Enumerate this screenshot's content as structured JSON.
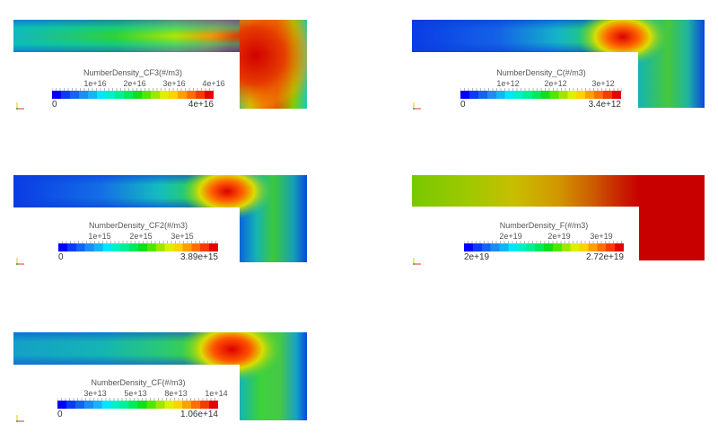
{
  "figure": {
    "description": "Five 2D L-shaped channel contour plots of number densities",
    "panels": [
      {
        "id": "cf3",
        "title": "NumberDensity_CF3(#/m3)",
        "range": {
          "min_label": "0",
          "max_label": "4e+16",
          "min": 0,
          "max": 4e+16
        },
        "tick_labels": [
          "1e+16",
          "2e+16",
          "3e+16",
          "4e+16"
        ],
        "hotspot": "corner-and-vertical-leg"
      },
      {
        "id": "c",
        "title": "NumberDensity_C(#/m3)",
        "range": {
          "min_label": "0",
          "max_label": "3.4e+12",
          "min": 0,
          "max": 3400000000000.0
        },
        "tick_labels": [
          "1e+12",
          "2e+12",
          "3e+12"
        ],
        "hotspot": "near-corner-top"
      },
      {
        "id": "cf2",
        "title": "NumberDensity_CF2(#/m3)",
        "range": {
          "min_label": "0",
          "max_label": "3.89e+15",
          "min": 0,
          "max": 3890000000000000.0
        },
        "tick_labels": [
          "1e+15",
          "2e+15",
          "3e+15"
        ],
        "hotspot": "near-corner-top"
      },
      {
        "id": "f",
        "title": "NumberDensity_F(#/m3)",
        "range": {
          "min_label": "2e+19",
          "max_label": "2.72e+19",
          "min": 2e+19,
          "max": 2.72e+19
        },
        "tick_labels": [
          "2e+19",
          "2e+19",
          "3e+19"
        ],
        "hotspot": "right-side"
      },
      {
        "id": "cf",
        "title": "NumberDensity_CF(#/m3)",
        "range": {
          "min_label": "0",
          "max_label": "1.06e+14",
          "min": 0,
          "max": 106000000000000.0
        },
        "tick_labels": [
          "3e+13",
          "5e+13",
          "8e+13",
          "1e+14"
        ],
        "hotspot": "near-corner-top"
      }
    ]
  },
  "colormap": [
    "#0000ff",
    "#0a3cf5",
    "#1464f0",
    "#1e8cf0",
    "#14b4f5",
    "#00e6ff",
    "#00f0c8",
    "#00f096",
    "#00eb5a",
    "#14dc1e",
    "#50e600",
    "#a0e600",
    "#dcf000",
    "#ffd200",
    "#ffa000",
    "#ff6e00",
    "#f53c00",
    "#e60000"
  ]
}
